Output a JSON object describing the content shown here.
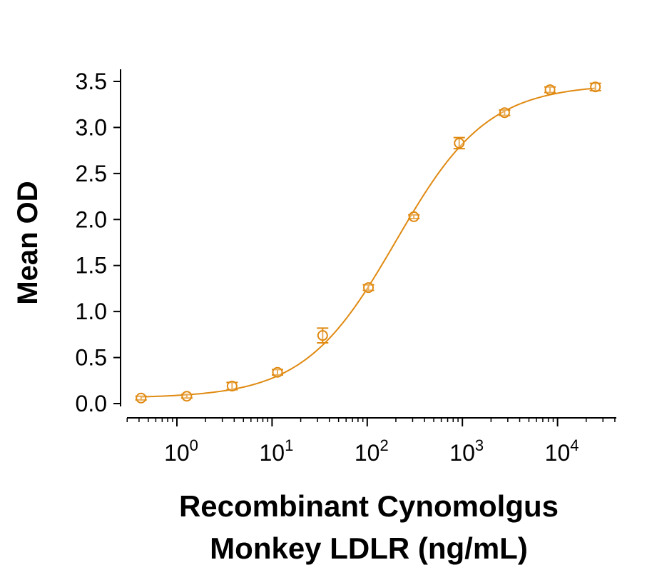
{
  "chart_data": {
    "type": "scatter",
    "xscale": "log",
    "xlim": [
      0.25,
      40000
    ],
    "ylim": [
      0.0,
      3.5
    ],
    "grid": false,
    "legend": "none",
    "color": "#E08A12",
    "ylabel": "Mean OD",
    "xlabel_lines": [
      "Recombinant Cynomolgus",
      "Monkey LDLR (ng/mL)"
    ],
    "yticks": [
      {
        "value": 0.0,
        "label": "0.0"
      },
      {
        "value": 0.5,
        "label": "0.5"
      },
      {
        "value": 1.0,
        "label": "1.0"
      },
      {
        "value": 1.5,
        "label": "1.5"
      },
      {
        "value": 2.0,
        "label": "2.0"
      },
      {
        "value": 2.5,
        "label": "2.5"
      },
      {
        "value": 3.0,
        "label": "3.0"
      },
      {
        "value": 3.5,
        "label": "3.5"
      }
    ],
    "xticks": [
      {
        "value": 1,
        "base": "10",
        "exp": "0"
      },
      {
        "value": 10,
        "base": "10",
        "exp": "1"
      },
      {
        "value": 100,
        "base": "10",
        "exp": "2"
      },
      {
        "value": 1000,
        "base": "10",
        "exp": "3"
      },
      {
        "value": 10000,
        "base": "10",
        "exp": "4"
      }
    ],
    "points": [
      {
        "x": 0.42,
        "y": 0.06,
        "err": 0.02
      },
      {
        "x": 1.27,
        "y": 0.08,
        "err": 0.02
      },
      {
        "x": 3.8,
        "y": 0.19,
        "err": 0.04
      },
      {
        "x": 11.4,
        "y": 0.34,
        "err": 0.03
      },
      {
        "x": 34,
        "y": 0.74,
        "err": 0.08
      },
      {
        "x": 103,
        "y": 1.26,
        "err": 0.03
      },
      {
        "x": 309,
        "y": 2.03,
        "err": 0.02
      },
      {
        "x": 926,
        "y": 2.83,
        "err": 0.06
      },
      {
        "x": 2778,
        "y": 3.16,
        "err": 0.03
      },
      {
        "x": 8333,
        "y": 3.41,
        "err": 0.03
      },
      {
        "x": 25000,
        "y": 3.44,
        "err": 0.04
      }
    ],
    "fit": {
      "model": "4PL",
      "bottom": 0.06,
      "top": 3.47,
      "ec50": 200,
      "hill": 0.9
    }
  }
}
